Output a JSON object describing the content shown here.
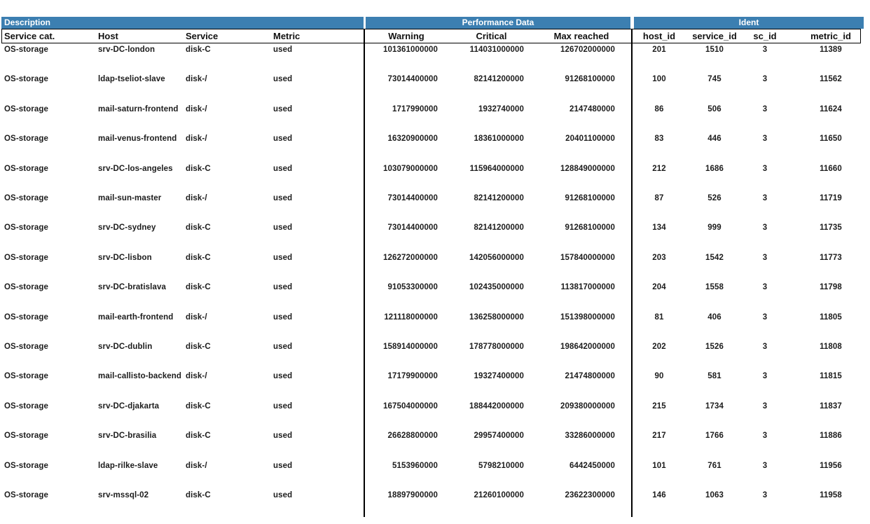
{
  "colors": {
    "header_band": "#3c7fb1",
    "text": "#1c1c1c"
  },
  "sections": {
    "description": {
      "title": "Description",
      "columns": [
        "Service cat.",
        "Host",
        "Service",
        "Metric"
      ]
    },
    "performance": {
      "title": "Performance Data",
      "columns": [
        "Warning",
        "Critical",
        "Max reached"
      ]
    },
    "ident": {
      "title": "Ident",
      "columns": [
        "host_id",
        "service_id",
        "sc_id",
        "metric_id"
      ]
    }
  },
  "rows": [
    {
      "service_cat": "OS-storage",
      "host": "srv-DC-london",
      "service": "disk-C",
      "metric": "used",
      "warning": "101361000000",
      "critical": "114031000000",
      "max_reached": "126702000000",
      "host_id": "201",
      "service_id": "1510",
      "sc_id": "3",
      "metric_id": "11389"
    },
    {
      "service_cat": "OS-storage",
      "host": "ldap-tseliot-slave",
      "service": "disk-/",
      "metric": "used",
      "warning": "73014400000",
      "critical": "82141200000",
      "max_reached": "91268100000",
      "host_id": "100",
      "service_id": "745",
      "sc_id": "3",
      "metric_id": "11562"
    },
    {
      "service_cat": "OS-storage",
      "host": "mail-saturn-frontend",
      "service": "disk-/",
      "metric": "used",
      "warning": "1717990000",
      "critical": "1932740000",
      "max_reached": "2147480000",
      "host_id": "86",
      "service_id": "506",
      "sc_id": "3",
      "metric_id": "11624"
    },
    {
      "service_cat": "OS-storage",
      "host": "mail-venus-frontend",
      "service": "disk-/",
      "metric": "used",
      "warning": "16320900000",
      "critical": "18361000000",
      "max_reached": "20401100000",
      "host_id": "83",
      "service_id": "446",
      "sc_id": "3",
      "metric_id": "11650"
    },
    {
      "service_cat": "OS-storage",
      "host": "srv-DC-los-angeles",
      "service": "disk-C",
      "metric": "used",
      "warning": "103079000000",
      "critical": "115964000000",
      "max_reached": "128849000000",
      "host_id": "212",
      "service_id": "1686",
      "sc_id": "3",
      "metric_id": "11660"
    },
    {
      "service_cat": "OS-storage",
      "host": "mail-sun-master",
      "service": "disk-/",
      "metric": "used",
      "warning": "73014400000",
      "critical": "82141200000",
      "max_reached": "91268100000",
      "host_id": "87",
      "service_id": "526",
      "sc_id": "3",
      "metric_id": "11719"
    },
    {
      "service_cat": "OS-storage",
      "host": "srv-DC-sydney",
      "service": "disk-C",
      "metric": "used",
      "warning": "73014400000",
      "critical": "82141200000",
      "max_reached": "91268100000",
      "host_id": "134",
      "service_id": "999",
      "sc_id": "3",
      "metric_id": "11735"
    },
    {
      "service_cat": "OS-storage",
      "host": "srv-DC-lisbon",
      "service": "disk-C",
      "metric": "used",
      "warning": "126272000000",
      "critical": "142056000000",
      "max_reached": "157840000000",
      "host_id": "203",
      "service_id": "1542",
      "sc_id": "3",
      "metric_id": "11773"
    },
    {
      "service_cat": "OS-storage",
      "host": "srv-DC-bratislava",
      "service": "disk-C",
      "metric": "used",
      "warning": "91053300000",
      "critical": "102435000000",
      "max_reached": "113817000000",
      "host_id": "204",
      "service_id": "1558",
      "sc_id": "3",
      "metric_id": "11798"
    },
    {
      "service_cat": "OS-storage",
      "host": "mail-earth-frontend",
      "service": "disk-/",
      "metric": "used",
      "warning": "121118000000",
      "critical": "136258000000",
      "max_reached": "151398000000",
      "host_id": "81",
      "service_id": "406",
      "sc_id": "3",
      "metric_id": "11805"
    },
    {
      "service_cat": "OS-storage",
      "host": "srv-DC-dublin",
      "service": "disk-C",
      "metric": "used",
      "warning": "158914000000",
      "critical": "178778000000",
      "max_reached": "198642000000",
      "host_id": "202",
      "service_id": "1526",
      "sc_id": "3",
      "metric_id": "11808"
    },
    {
      "service_cat": "OS-storage",
      "host": "mail-callisto-backend",
      "service": "disk-/",
      "metric": "used",
      "warning": "17179900000",
      "critical": "19327400000",
      "max_reached": "21474800000",
      "host_id": "90",
      "service_id": "581",
      "sc_id": "3",
      "metric_id": "11815"
    },
    {
      "service_cat": "OS-storage",
      "host": "srv-DC-djakarta",
      "service": "disk-C",
      "metric": "used",
      "warning": "167504000000",
      "critical": "188442000000",
      "max_reached": "209380000000",
      "host_id": "215",
      "service_id": "1734",
      "sc_id": "3",
      "metric_id": "11837"
    },
    {
      "service_cat": "OS-storage",
      "host": "srv-DC-brasilia",
      "service": "disk-C",
      "metric": "used",
      "warning": "26628800000",
      "critical": "29957400000",
      "max_reached": "33286000000",
      "host_id": "217",
      "service_id": "1766",
      "sc_id": "3",
      "metric_id": "11886"
    },
    {
      "service_cat": "OS-storage",
      "host": "ldap-rilke-slave",
      "service": "disk-/",
      "metric": "used",
      "warning": "5153960000",
      "critical": "5798210000",
      "max_reached": "6442450000",
      "host_id": "101",
      "service_id": "761",
      "sc_id": "3",
      "metric_id": "11956"
    },
    {
      "service_cat": "OS-storage",
      "host": "srv-mssql-02",
      "service": "disk-C",
      "metric": "used",
      "warning": "18897900000",
      "critical": "21260100000",
      "max_reached": "23622300000",
      "host_id": "146",
      "service_id": "1063",
      "sc_id": "3",
      "metric_id": "11958"
    }
  ]
}
